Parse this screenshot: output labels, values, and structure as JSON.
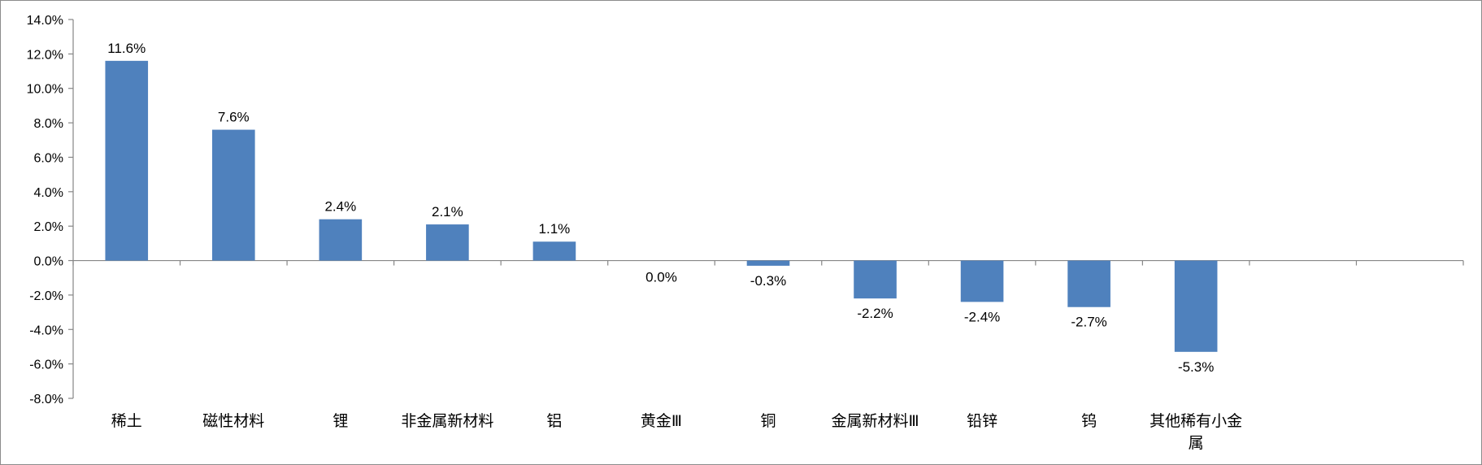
{
  "chart_data": {
    "type": "bar",
    "categories": [
      "稀土",
      "磁性材料",
      "锂",
      "非金属新材料",
      "铝",
      "黄金Ⅲ",
      "铜",
      "金属新材料Ⅲ",
      "铅锌",
      "钨",
      "其他稀有小金属"
    ],
    "category_lines": [
      [
        "稀土"
      ],
      [
        "磁性材料"
      ],
      [
        "锂"
      ],
      [
        "非金属新材料"
      ],
      [
        "铝"
      ],
      [
        "黄金Ⅲ"
      ],
      [
        "铜"
      ],
      [
        "金属新材料Ⅲ"
      ],
      [
        "铅锌"
      ],
      [
        "钨"
      ],
      [
        "其他稀有小金",
        "属"
      ]
    ],
    "values": [
      11.6,
      7.6,
      2.4,
      2.1,
      1.1,
      0.0,
      -0.3,
      -2.2,
      -2.4,
      -2.7,
      -5.3
    ],
    "data_labels": [
      "11.6%",
      "7.6%",
      "2.4%",
      "2.1%",
      "1.1%",
      "0.0%",
      "-0.3%",
      "-2.2%",
      "-2.4%",
      "-2.7%",
      "-5.3%"
    ],
    "yticks": [
      14,
      12,
      10,
      8,
      6,
      4,
      2,
      0,
      -2,
      -4,
      -6,
      -8
    ],
    "ytick_labels": [
      "14.0%",
      "12.0%",
      "10.0%",
      "8.0%",
      "6.0%",
      "4.0%",
      "2.0%",
      "0.0%",
      "-2.0%",
      "-4.0%",
      "-6.0%",
      "-8.0%"
    ],
    "ylim": [
      -8,
      14
    ],
    "bar_color": "#4f81bd",
    "grid": false,
    "legend": "none"
  }
}
